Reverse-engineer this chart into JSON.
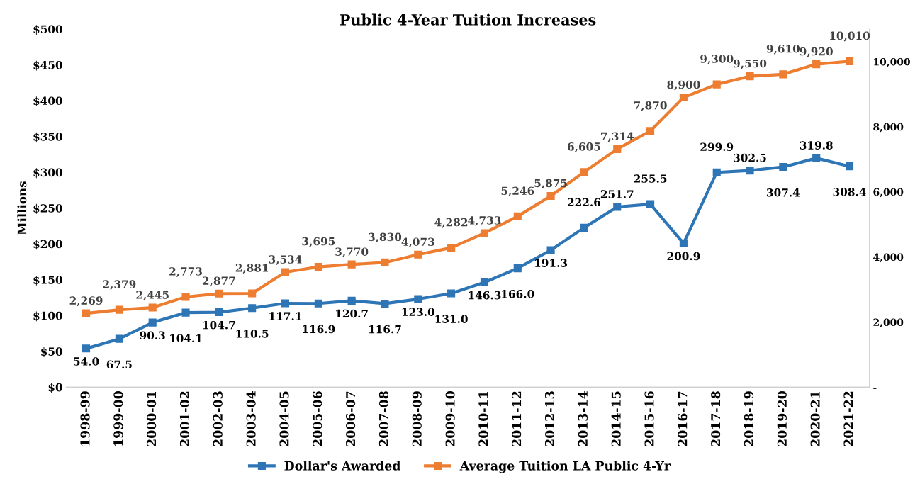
{
  "chart_data": {
    "type": "line",
    "title": "Public 4-Year Tuition Increases",
    "ylabel": "Millions",
    "categories": [
      "1998-99",
      "1999-00",
      "2000-01",
      "2001-02",
      "2002-03",
      "2003-04",
      "2004-05",
      "2005-06",
      "2006-07",
      "2007-08",
      "2008-09",
      "2009-10",
      "2010-11",
      "2011-12",
      "2012-13",
      "2013-14",
      "2014-15",
      "2015-16",
      "2016-17",
      "2017-18",
      "2018-19",
      "2019-20",
      "2020-21",
      "2021-22"
    ],
    "series": [
      {
        "name": "Dollar's Awarded",
        "color": "#2e75b6",
        "values": [
          54.0,
          67.5,
          90.3,
          104.1,
          104.7,
          110.5,
          117.1,
          116.9,
          120.7,
          116.7,
          123.0,
          131.0,
          146.3,
          166.0,
          191.3,
          222.6,
          251.7,
          255.5,
          200.9,
          299.9,
          302.5,
          307.4,
          319.8,
          308.4
        ],
        "value_labels": [
          "54.0",
          "67.5",
          "90.3",
          "104.1",
          "104.7",
          "110.5",
          "117.1",
          "116.9",
          "120.7",
          "116.7",
          "123.0",
          "131.0",
          "146.3",
          "166.0",
          "191.3",
          "222.6",
          "251.7",
          "255.5",
          "200.9",
          "299.9",
          "302.5",
          "307.4",
          "319.8",
          "308.4"
        ]
      },
      {
        "name": "Average Tuition LA Public 4-Yr",
        "color": "#ed7d31",
        "axis": "y2",
        "values": [
          2269,
          2379,
          2445,
          2773,
          2877,
          2881,
          3534,
          3695,
          3770,
          3830,
          4073,
          4282,
          4733,
          5246,
          5875,
          6605,
          7314,
          7870,
          8900,
          9300,
          9550,
          9610,
          9920,
          10010
        ],
        "value_labels": [
          "2,269",
          "2,379",
          "2,445",
          "2,773",
          "2,877",
          "2,881",
          "3,534",
          "3,695",
          "3,770",
          "3,830",
          "4,073",
          "4,282",
          "4,733",
          "5,246",
          "5,875",
          "6,605",
          "7,314",
          "7,870",
          "8,900",
          "9,300",
          "9,550",
          "9,610",
          "9,920",
          "10,010"
        ]
      }
    ],
    "ylim": [
      0,
      500
    ],
    "yticks": [
      {
        "value": 0,
        "label": "$0"
      },
      {
        "value": 50,
        "label": "$50"
      },
      {
        "value": 100,
        "label": "$100"
      },
      {
        "value": 150,
        "label": "$150"
      },
      {
        "value": 200,
        "label": "$200"
      },
      {
        "value": 250,
        "label": "$250"
      },
      {
        "value": 300,
        "label": "$300"
      },
      {
        "value": 350,
        "label": "$350"
      },
      {
        "value": 400,
        "label": "$400"
      },
      {
        "value": 450,
        "label": "$450"
      },
      {
        "value": 500,
        "label": "$500"
      }
    ],
    "y2lim": [
      0,
      11000
    ],
    "y2ticks": [
      {
        "value": 0,
        "label": "-"
      },
      {
        "value": 2000,
        "label": "2,000"
      },
      {
        "value": 4000,
        "label": "4,000"
      },
      {
        "value": 6000,
        "label": "6,000"
      },
      {
        "value": 8000,
        "label": "8,000"
      },
      {
        "value": 10000,
        "label": "10,000"
      }
    ],
    "grid": false,
    "legend": "bottom",
    "marker": "square",
    "line_style": "solid"
  }
}
